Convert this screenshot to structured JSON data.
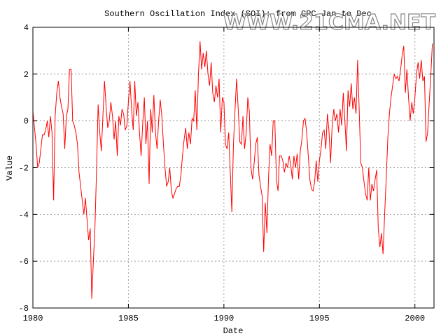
{
  "watermark": "WWW.21CMA.NET",
  "chart_data": {
    "type": "line",
    "title": "Southern Oscillation Index (SOI): from CPC Jan to Dec",
    "xlabel": "Date",
    "ylabel": "Value",
    "xlim": [
      1980,
      2001
    ],
    "ylim": [
      -8,
      4
    ],
    "xticks": [
      1980,
      1985,
      1990,
      1995,
      2000
    ],
    "yticks": [
      -8,
      -6,
      -4,
      -2,
      0,
      2,
      4
    ],
    "grid": true,
    "line_color": "#ff0000",
    "grid_color": "#a0a0a0",
    "start_year": 1980,
    "frequency": "monthly",
    "values": [
      0.4,
      -0.3,
      -1.0,
      -2.0,
      -1.8,
      -1.2,
      -0.6,
      -0.6,
      -0.4,
      0.0,
      -0.7,
      0.2,
      -0.5,
      -3.4,
      0.2,
      1.2,
      1.7,
      1.0,
      0.6,
      0.3,
      -1.2,
      0.2,
      0.5,
      2.2,
      2.2,
      0.0,
      -0.2,
      -0.5,
      -1.0,
      -2.2,
      -2.8,
      -3.4,
      -4.0,
      -3.3,
      -4.2,
      -5.1,
      -4.6,
      -7.6,
      -6.0,
      -4.5,
      -2.0,
      0.7,
      -0.5,
      -1.3,
      0.2,
      1.7,
      0.6,
      -0.3,
      0.0,
      0.8,
      0.2,
      -0.8,
      0.0,
      -1.5,
      0.2,
      -0.2,
      0.5,
      0.3,
      -0.4,
      -0.2,
      0.8,
      1.7,
      0.5,
      -0.4,
      1.7,
      0.2,
      0.8,
      -0.5,
      -1.5,
      -0.1,
      1.0,
      -1.0,
      0.0,
      -2.7,
      0.5,
      -0.5,
      1.1,
      -0.5,
      -1.2,
      0.0,
      0.9,
      0.2,
      -1.0,
      -2.0,
      -2.8,
      -2.6,
      -2.0,
      -3.0,
      -3.3,
      -3.1,
      -2.9,
      -2.8,
      -2.8,
      -2.3,
      -1.5,
      -0.8,
      -0.3,
      -1.2,
      -0.5,
      -1.0,
      0.1,
      0.0,
      1.3,
      -0.4,
      2.0,
      3.4,
      2.2,
      2.9,
      2.3,
      3.0,
      2.0,
      1.5,
      2.5,
      1.2,
      0.8,
      1.5,
      1.0,
      1.8,
      -0.5,
      1.0,
      0.8,
      -1.0,
      -1.2,
      -0.5,
      -2.2,
      -3.9,
      -1.0,
      0.5,
      1.8,
      0.5,
      -0.9,
      -1.0,
      0.2,
      -1.2,
      -0.5,
      1.0,
      0.4,
      -2.0,
      -2.5,
      -1.8,
      -1.0,
      -0.7,
      -2.3,
      -2.8,
      -3.2,
      -5.6,
      -3.5,
      -4.8,
      -2.5,
      -1.0,
      -1.5,
      0.0,
      0.0,
      -2.5,
      -3.0,
      -1.5,
      -1.5,
      -1.7,
      -2.2,
      -1.8,
      -2.0,
      -1.5,
      -1.9,
      -2.5,
      -1.5,
      -2.0,
      -1.4,
      -2.5,
      -1.3,
      -0.8,
      0.0,
      0.1,
      -0.5,
      -1.5,
      -2.5,
      -2.9,
      -3.0,
      -2.6,
      -1.7,
      -2.6,
      -1.7,
      -1.2,
      -0.5,
      -0.4,
      -1.2,
      0.3,
      -0.4,
      -1.8,
      -0.2,
      0.5,
      0.0,
      0.3,
      -0.5,
      0.5,
      -0.2,
      1.2,
      0.0,
      -1.3,
      1.3,
      0.6,
      1.6,
      0.5,
      1.0,
      0.3,
      2.6,
      0.5,
      -1.8,
      -2.0,
      -2.6,
      -3.1,
      -3.4,
      -2.0,
      -3.4,
      -2.7,
      -3.0,
      -2.5,
      -2.1,
      -4.6,
      -5.4,
      -4.8,
      -5.7,
      -4.0,
      -2.4,
      -0.7,
      0.3,
      1.0,
      1.5,
      2.0,
      1.8,
      1.9,
      1.7,
      2.2,
      2.8,
      3.2,
      1.2,
      2.2,
      1.0,
      0.0,
      0.8,
      0.3,
      1.0,
      2.0,
      2.5,
      1.8,
      2.6,
      1.7,
      1.9,
      -0.9,
      -0.5,
      0.8,
      2.0,
      3.3
    ]
  }
}
